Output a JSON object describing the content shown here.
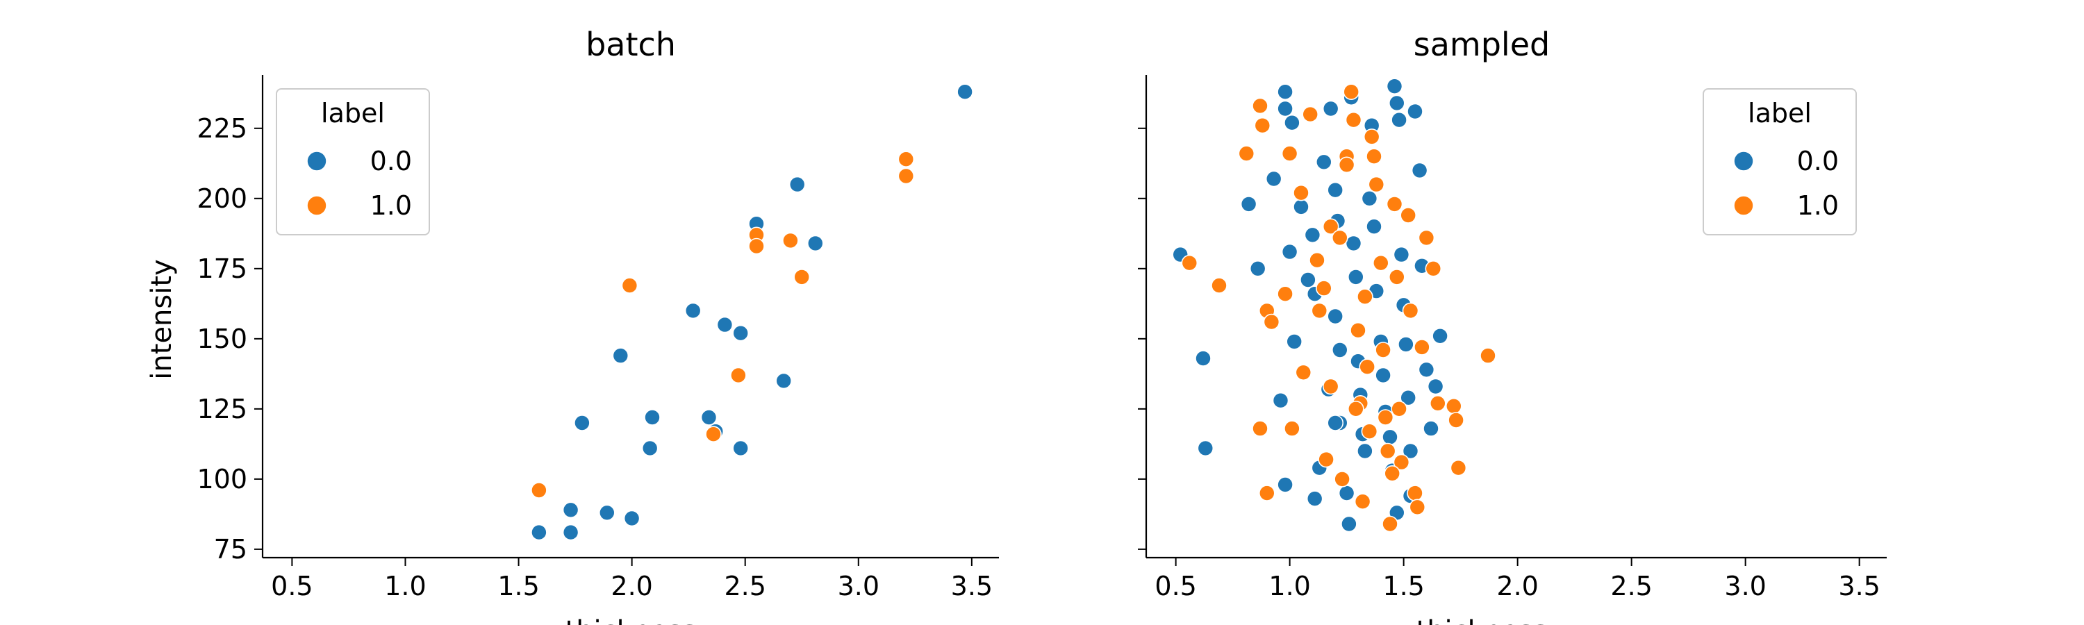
{
  "chart_data": [
    {
      "type": "scatter",
      "title": "batch",
      "xlabel": "thickness",
      "ylabel": "intensity",
      "xlim": [
        0.37,
        3.62
      ],
      "ylim": [
        72,
        244
      ],
      "xticks": [
        "0.5",
        "1.0",
        "1.5",
        "2.0",
        "2.5",
        "3.0",
        "3.5"
      ],
      "yticks": [
        "75",
        "100",
        "125",
        "150",
        "175",
        "200",
        "225"
      ],
      "grid": false,
      "legend": {
        "title": "label",
        "placement": "top-left"
      },
      "series": [
        {
          "name": "0.0",
          "color": "#1f77b4",
          "points": [
            [
              3.47,
              238
            ],
            [
              2.73,
              205
            ],
            [
              2.55,
              191
            ],
            [
              2.81,
              184
            ],
            [
              2.27,
              160
            ],
            [
              2.41,
              155
            ],
            [
              2.48,
              152
            ],
            [
              1.95,
              144
            ],
            [
              2.67,
              135
            ],
            [
              1.78,
              120
            ],
            [
              2.09,
              122
            ],
            [
              2.34,
              122
            ],
            [
              2.37,
              117
            ],
            [
              2.08,
              111
            ],
            [
              2.48,
              111
            ],
            [
              1.73,
              89
            ],
            [
              1.89,
              88
            ],
            [
              2.0,
              86
            ],
            [
              1.59,
              81
            ],
            [
              1.73,
              81
            ]
          ]
        },
        {
          "name": "1.0",
          "color": "#ff7f0e",
          "points": [
            [
              3.21,
              214
            ],
            [
              3.21,
              208
            ],
            [
              2.55,
              187
            ],
            [
              2.55,
              183
            ],
            [
              2.7,
              185
            ],
            [
              2.75,
              172
            ],
            [
              1.99,
              169
            ],
            [
              2.47,
              137
            ],
            [
              2.36,
              116
            ],
            [
              1.59,
              96
            ]
          ]
        }
      ]
    },
    {
      "type": "scatter",
      "title": "sampled",
      "xlabel": "thickness",
      "ylabel": "",
      "xlim": [
        0.37,
        3.62
      ],
      "ylim": [
        72,
        244
      ],
      "xticks": [
        "0.5",
        "1.0",
        "1.5",
        "2.0",
        "2.5",
        "3.0",
        "3.5"
      ],
      "yticks": [
        "75",
        "100",
        "125",
        "150",
        "175",
        "200",
        "225"
      ],
      "grid": false,
      "legend": {
        "title": "label",
        "placement": "top-right"
      },
      "series": [
        {
          "name": "0.0",
          "color": "#1f77b4",
          "points": [
            [
              0.52,
              180
            ],
            [
              0.62,
              143
            ],
            [
              0.63,
              111
            ],
            [
              0.82,
              198
            ],
            [
              0.93,
              207
            ],
            [
              0.98,
              238
            ],
            [
              0.98,
              232
            ],
            [
              1.01,
              227
            ],
            [
              0.96,
              128
            ],
            [
              0.98,
              98
            ],
            [
              1.02,
              149
            ],
            [
              1.05,
              197
            ],
            [
              1.08,
              171
            ],
            [
              1.1,
              187
            ],
            [
              1.11,
              93
            ],
            [
              1.13,
              104
            ],
            [
              1.15,
              213
            ],
            [
              1.17,
              132
            ],
            [
              1.18,
              232
            ],
            [
              1.2,
              203
            ],
            [
              1.2,
              158
            ],
            [
              1.21,
              192
            ],
            [
              1.22,
              146
            ],
            [
              1.22,
              120
            ],
            [
              1.25,
              95
            ],
            [
              1.26,
              84
            ],
            [
              1.27,
              236
            ],
            [
              1.28,
              184
            ],
            [
              1.29,
              172
            ],
            [
              1.3,
              142
            ],
            [
              1.31,
              130
            ],
            [
              1.32,
              116
            ],
            [
              1.33,
              110
            ],
            [
              1.35,
              200
            ],
            [
              1.36,
              226
            ],
            [
              1.37,
              190
            ],
            [
              1.38,
              167
            ],
            [
              1.4,
              149
            ],
            [
              1.41,
              137
            ],
            [
              1.42,
              124
            ],
            [
              1.44,
              115
            ],
            [
              1.45,
              103
            ],
            [
              1.46,
              240
            ],
            [
              1.47,
              234
            ],
            [
              1.48,
              228
            ],
            [
              1.49,
              180
            ],
            [
              1.5,
              162
            ],
            [
              1.51,
              148
            ],
            [
              1.52,
              129
            ],
            [
              1.53,
              110
            ],
            [
              1.53,
              94
            ],
            [
              1.55,
              231
            ],
            [
              1.57,
              210
            ],
            [
              1.58,
              176
            ],
            [
              1.6,
              139
            ],
            [
              1.62,
              118
            ],
            [
              1.64,
              133
            ],
            [
              1.66,
              151
            ],
            [
              0.86,
              175
            ],
            [
              1.0,
              181
            ],
            [
              1.11,
              166
            ],
            [
              1.2,
              120
            ],
            [
              1.47,
              88
            ]
          ]
        },
        {
          "name": "1.0",
          "color": "#ff7f0e",
          "points": [
            [
              0.56,
              177
            ],
            [
              0.69,
              169
            ],
            [
              0.81,
              216
            ],
            [
              0.87,
              233
            ],
            [
              0.88,
              226
            ],
            [
              0.9,
              160
            ],
            [
              0.92,
              156
            ],
            [
              0.87,
              118
            ],
            [
              0.9,
              95
            ],
            [
              1.0,
              216
            ],
            [
              1.05,
              202
            ],
            [
              1.06,
              138
            ],
            [
              1.09,
              230
            ],
            [
              1.12,
              178
            ],
            [
              1.13,
              160
            ],
            [
              1.15,
              168
            ],
            [
              1.16,
              107
            ],
            [
              1.18,
              190
            ],
            [
              1.22,
              186
            ],
            [
              1.23,
              100
            ],
            [
              1.25,
              215
            ],
            [
              1.27,
              238
            ],
            [
              1.28,
              228
            ],
            [
              1.3,
              153
            ],
            [
              1.31,
              127
            ],
            [
              1.32,
              92
            ],
            [
              1.33,
              165
            ],
            [
              1.34,
              140
            ],
            [
              1.36,
              222
            ],
            [
              1.37,
              215
            ],
            [
              1.38,
              205
            ],
            [
              1.4,
              177
            ],
            [
              1.41,
              146
            ],
            [
              1.42,
              122
            ],
            [
              1.43,
              110
            ],
            [
              1.44,
              84
            ],
            [
              1.46,
              198
            ],
            [
              1.47,
              172
            ],
            [
              1.48,
              125
            ],
            [
              1.49,
              106
            ],
            [
              1.52,
              194
            ],
            [
              1.53,
              160
            ],
            [
              1.55,
              95
            ],
            [
              1.56,
              90
            ],
            [
              1.58,
              147
            ],
            [
              1.6,
              186
            ],
            [
              1.63,
              175
            ],
            [
              1.65,
              127
            ],
            [
              1.72,
              126
            ],
            [
              1.73,
              121
            ],
            [
              1.74,
              104
            ],
            [
              1.87,
              144
            ],
            [
              1.01,
              118
            ],
            [
              0.98,
              166
            ],
            [
              1.25,
              212
            ],
            [
              1.29,
              125
            ],
            [
              1.35,
              117
            ],
            [
              1.45,
              102
            ],
            [
              1.18,
              133
            ]
          ]
        }
      ]
    }
  ]
}
